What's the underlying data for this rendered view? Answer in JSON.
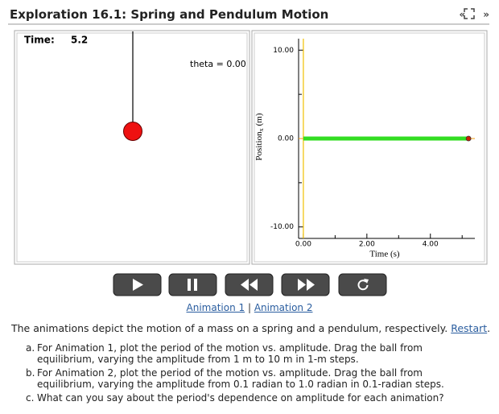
{
  "header": {
    "title": "Exploration 16.1: Spring and Pendulum Motion",
    "prev": "«",
    "next": "»"
  },
  "animation": {
    "time_label": "Time:",
    "time": 5.2,
    "theta_label": "theta = 0.00"
  },
  "graph": {
    "y_label": "Position",
    "y_label_sub": "x",
    "y_label_unit": "(m)",
    "x_label": "Time (s)",
    "xlim": [
      -0.15,
      5.4
    ],
    "ylim": [
      -11.3,
      11.3
    ],
    "xticks": [
      {
        "value": 0,
        "label": "0.00"
      },
      {
        "value": 2,
        "label": "2.00"
      },
      {
        "value": 4,
        "label": "4.00"
      }
    ],
    "xminor": [
      1,
      3,
      5
    ],
    "yticks": [
      {
        "value": -10,
        "label": "-10.00"
      },
      {
        "value": 0,
        "label": "0.00"
      },
      {
        "value": 10,
        "label": "10.00"
      }
    ],
    "yminor": [
      -5,
      5
    ],
    "trace": {
      "t": [
        0,
        5.2
      ],
      "x": [
        0,
        0
      ]
    }
  },
  "links": {
    "first": "Animation 1",
    "separator": "|",
    "second": "Animation 2"
  },
  "description": {
    "text": "The animations depict the motion of a mass on a spring and a pendulum, respectively.",
    "link": "Restart",
    "end": "."
  },
  "items": [
    {
      "marker": "a.",
      "text": "For Animation 1, plot the period of the motion vs. amplitude. Drag the ball from equilibrium, varying the amplitude from 1 m to 10 m in 1-m steps."
    },
    {
      "marker": "b.",
      "text": "For Animation 2, plot the period of the motion vs. amplitude. Drag the ball from equilibrium, varying the amplitude from 0.1 radian to 1.0 radian in 0.1-radian steps."
    },
    {
      "marker": "c.",
      "text": "What can you say about the period's dependence on amplitude for each animation?"
    }
  ]
}
